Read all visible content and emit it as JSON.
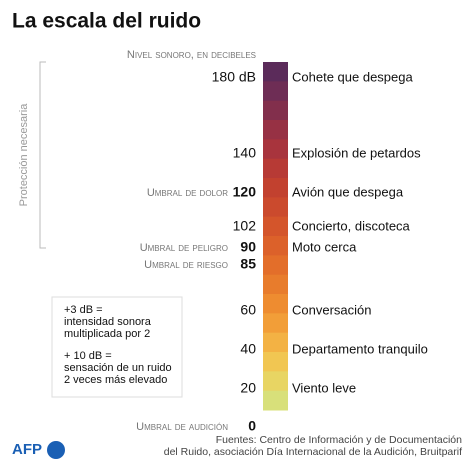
{
  "header": {
    "title": "La escala del ruido",
    "subtitle": "Nivel sonoro, en decibeles"
  },
  "side_label": "Protección necesaria",
  "bar_colors": [
    "#5b2b5a",
    "#6e2d55",
    "#822f4c",
    "#973144",
    "#a8343d",
    "#b73a35",
    "#c2412f",
    "#cb4a2d",
    "#d4552b",
    "#dc612a",
    "#e36e2a",
    "#e87c2c",
    "#ee8c30",
    "#f29e38",
    "#f3b244",
    "#f1c652",
    "#e8d563",
    "#d8e07a"
  ],
  "levels": [
    {
      "level": "180 dB",
      "example": "Cohete que despega"
    },
    {
      "level": "140",
      "example": "Explosión de petardos"
    },
    {
      "level": "120",
      "example": "Avión que despega",
      "threshold": "Umbral de dolor"
    },
    {
      "level": "102",
      "example": "Concierto, discoteca"
    },
    {
      "level": "90",
      "example": "Moto cerca",
      "threshold": "Umbral de peligro"
    },
    {
      "level": "85",
      "threshold": "Umbral de riesgo"
    },
    {
      "level": "60",
      "example": "Conversación"
    },
    {
      "level": "40",
      "example": "Departamento tranquilo"
    },
    {
      "level": "20",
      "example": "Viento leve"
    },
    {
      "level": "0",
      "threshold": "Umbral de audición"
    }
  ],
  "note": {
    "lines_a": [
      "+3 dB =",
      "intensidad sonora",
      "multiplicada por 2"
    ],
    "lines_b": [
      "+ 10 dB =",
      "sensación de un ruido",
      "2 veces más elevado"
    ]
  },
  "source": [
    "Fuentes: Centro de Información y de Documentación",
    "del Ruido, asociación Día Internacional de la Audición, Bruitparif"
  ],
  "logo": "AFP"
}
